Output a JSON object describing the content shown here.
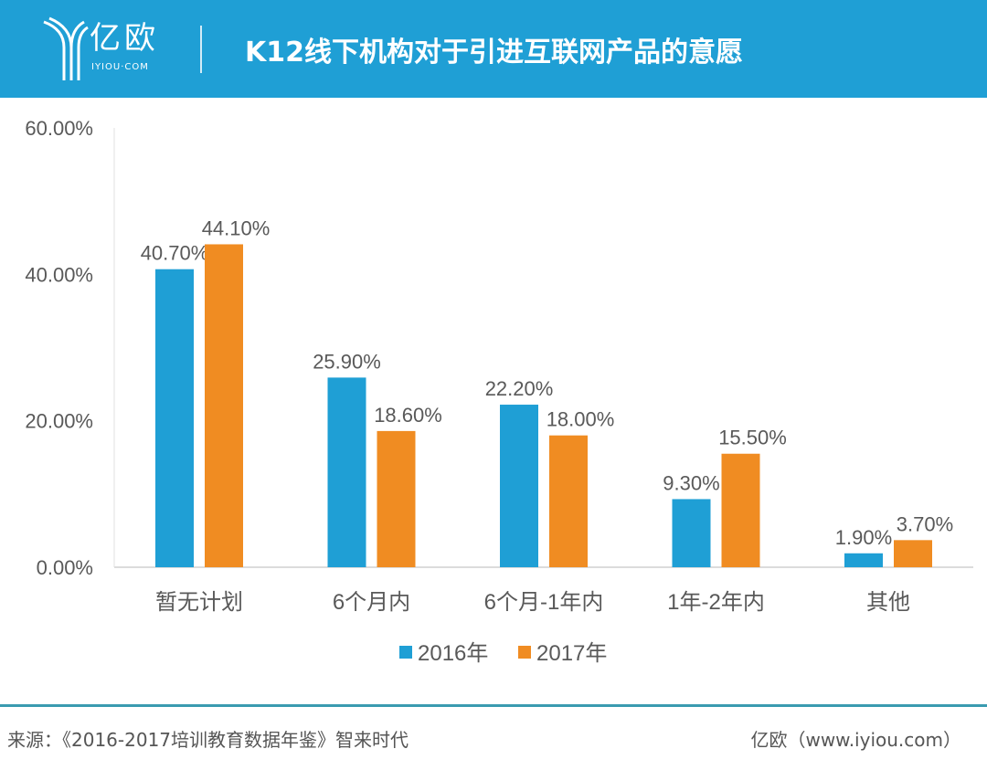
{
  "header": {
    "logo_text": "亿欧",
    "logo_sub": "IYIOU·COM",
    "title": "K12线下机构对于引进互联网产品的意愿"
  },
  "chart_data": {
    "type": "bar",
    "title": "K12线下机构对于引进互联网产品的意愿",
    "categories": [
      "暂无计划",
      "6个月内",
      "6个月-1年内",
      "1年-2年内",
      "其他"
    ],
    "series": [
      {
        "name": "2016年",
        "color": "#1f9fd5",
        "values": [
          40.7,
          25.9,
          22.2,
          9.3,
          1.9
        ],
        "labels": [
          "40.70%",
          "25.90%",
          "22.20%",
          "9.30%",
          "1.90%"
        ]
      },
      {
        "name": "2017年",
        "color": "#f08c22",
        "values": [
          44.1,
          18.6,
          18.0,
          15.5,
          3.7
        ],
        "labels": [
          "44.10%",
          "18.60%",
          "18.00%",
          "15.50%",
          "3.70%"
        ]
      }
    ],
    "yticks": [
      "0.00%",
      "20.00%",
      "40.00%",
      "60.00%"
    ],
    "ytick_values": [
      0,
      20,
      40,
      60
    ],
    "ylim": [
      0,
      60
    ],
    "legend": "bottom",
    "xlabel": "",
    "ylabel": ""
  },
  "footer": {
    "source": "来源：《2016-2017培训教育数据年鉴》智来时代",
    "brand": "亿欧（www.iyiou.com）"
  }
}
